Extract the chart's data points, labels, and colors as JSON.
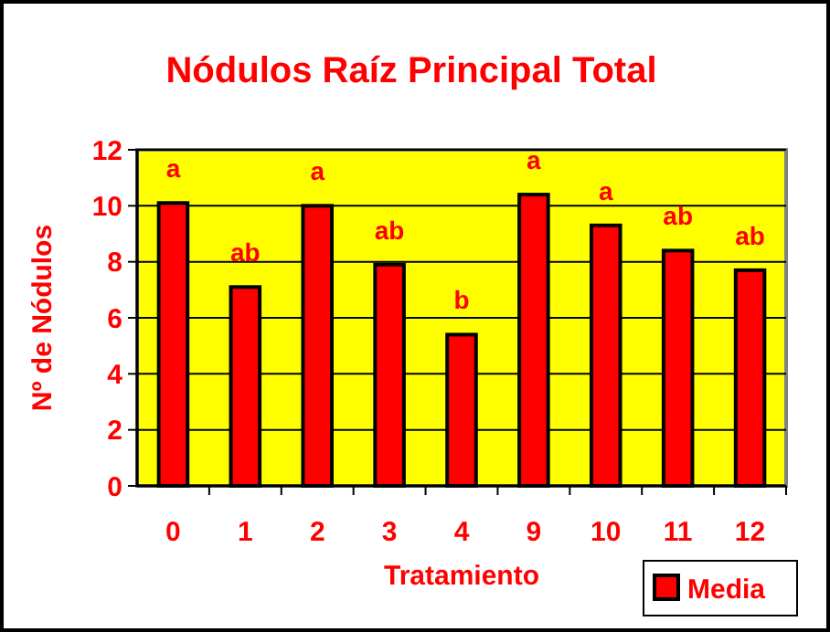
{
  "chart_data": {
    "type": "bar",
    "title": "Nódulos Raíz Principal Total",
    "xlabel": "Tratamiento",
    "ylabel": "Nº de Nódulos",
    "categories": [
      "0",
      "1",
      "2",
      "3",
      "4",
      "9",
      "10",
      "11",
      "12"
    ],
    "series": [
      {
        "name": "Media",
        "color": "#ff0000",
        "values": [
          10.1,
          7.1,
          10.0,
          7.9,
          5.4,
          10.4,
          9.3,
          8.4,
          7.7
        ],
        "value_labels": [
          "a",
          "ab",
          "a",
          "ab",
          "b",
          "a",
          "a",
          "ab",
          "ab"
        ]
      }
    ],
    "ylim": [
      0,
      12
    ],
    "yticks": [
      0,
      2,
      4,
      6,
      8,
      10,
      12
    ],
    "grid": "y",
    "legend": "bottom right"
  }
}
